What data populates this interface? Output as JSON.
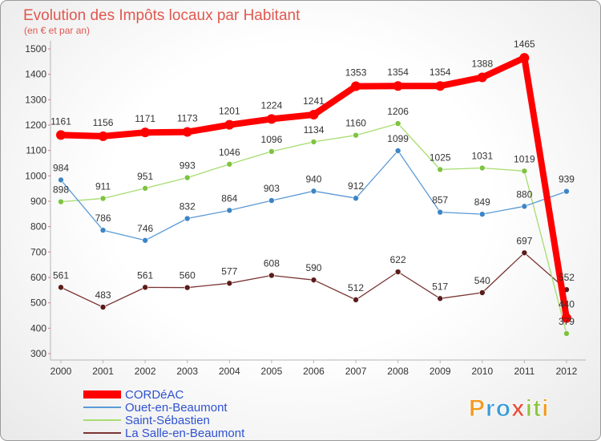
{
  "chart_data": {
    "type": "line",
    "title": "Evolution des Impôts locaux par Habitant",
    "subtitle": "(en € et par an)",
    "x": [
      "2000",
      "2001",
      "2002",
      "2003",
      "2004",
      "2005",
      "2006",
      "2007",
      "2008",
      "2009",
      "2010",
      "2011",
      "2012"
    ],
    "ylim": [
      300,
      1500
    ],
    "yticks": [
      300,
      400,
      500,
      600,
      700,
      800,
      900,
      1000,
      1100,
      1200,
      1300,
      1400,
      1500
    ],
    "grid": false,
    "legend": "bottom-left",
    "series": [
      {
        "name": "CORDéAC",
        "color": "#ff0000",
        "marker_color": "#ff0000",
        "values": [
          1161,
          1156,
          1171,
          1173,
          1201,
          1224,
          1241,
          1353,
          1354,
          1354,
          1388,
          1465,
          440
        ]
      },
      {
        "name": "Ouet-en-Beaumont",
        "color": "#5a9ad6",
        "marker_color": "#3d85c6",
        "values": [
          984,
          786,
          746,
          832,
          864,
          903,
          940,
          912,
          1099,
          857,
          849,
          880,
          939
        ]
      },
      {
        "name": "Saint-Sébastien",
        "color": "#a6dd6f",
        "marker_color": "#7dc43f",
        "values": [
          898,
          911,
          951,
          993,
          1046,
          1096,
          1134,
          1160,
          1206,
          1025,
          1031,
          1019,
          379
        ]
      },
      {
        "name": "La Salle-en-Beaumont",
        "color": "#7b3535",
        "marker_color": "#5a1c1c",
        "values": [
          561,
          483,
          561,
          560,
          577,
          608,
          590,
          512,
          622,
          517,
          540,
          697,
          552
        ]
      }
    ]
  },
  "logo": {
    "text": "Proxiti",
    "colors": [
      "#f39a1e",
      "#3a9bd8",
      "#3a9bd8",
      "#e94e3c",
      "#8cc63f",
      "#8cc63f",
      "#f39a1e"
    ]
  }
}
